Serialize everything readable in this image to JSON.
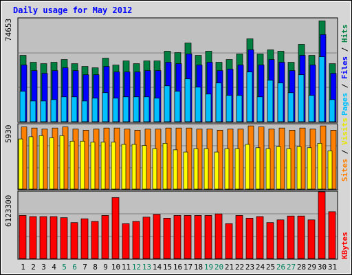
{
  "title": "Daily usage for May 2012",
  "colors": {
    "background": "#c0c0c0",
    "title": "#0000ff",
    "hits": "#008040",
    "files": "#0000ff",
    "pages": "#00c0ff",
    "visits": "#ffff00",
    "sites": "#ff8000",
    "kbytes": "#ff0000",
    "weekend_label": "#00805c",
    "weekday_label": "#000000"
  },
  "legends": {
    "top": [
      "Pages",
      "Files",
      "Hits"
    ],
    "top_separator": " / ",
    "middle": [
      "Sites",
      "Visits"
    ],
    "middle_separator": " / ",
    "bottom": [
      "KBytes"
    ]
  },
  "max_labels": {
    "top": "74653",
    "middle": "5930",
    "bottom": "6123300"
  },
  "chart_data": {
    "type": "bar",
    "title": "Daily usage for May 2012",
    "categories": [
      "1",
      "2",
      "3",
      "4",
      "5",
      "6",
      "7",
      "8",
      "9",
      "10",
      "11",
      "12",
      "13",
      "14",
      "15",
      "16",
      "17",
      "18",
      "19",
      "20",
      "21",
      "22",
      "23",
      "24",
      "25",
      "26",
      "27",
      "28",
      "29",
      "30",
      "31"
    ],
    "weekend_days": [
      "5",
      "6",
      "12",
      "13",
      "19",
      "20",
      "26",
      "27"
    ],
    "panels": [
      {
        "name": "top",
        "ymax": 74653,
        "series": [
          {
            "name": "Hits",
            "values": [
              48000,
              43000,
              42000,
              43000,
              45000,
              42000,
              40000,
              39000,
              46000,
              41000,
              44000,
              42000,
              44000,
              44000,
              51000,
              50000,
              57000,
              48000,
              51000,
              43000,
              45000,
              49000,
              60000,
              49000,
              52000,
              51000,
              43000,
              56000,
              48000,
              73000,
              42000
            ]
          },
          {
            "name": "Files",
            "values": [
              41000,
              37000,
              35000,
              37000,
              39000,
              37000,
              34000,
              34000,
              40000,
              36000,
              36000,
              36000,
              37000,
              37000,
              43000,
              42000,
              49000,
              41000,
              43000,
              37000,
              38000,
              41000,
              52000,
              41000,
              45000,
              43000,
              37000,
              48000,
              41000,
              63000,
              35000
            ]
          },
          {
            "name": "Pages",
            "values": [
              22000,
              15000,
              15000,
              16000,
              18000,
              18000,
              15000,
              17000,
              21000,
              17000,
              18000,
              18000,
              18000,
              17000,
              26000,
              22000,
              31000,
              25000,
              20000,
              28000,
              19000,
              19000,
              36000,
              18000,
              30000,
              28000,
              21000,
              34000,
              19000,
              47000,
              16000
            ]
          }
        ]
      },
      {
        "name": "middle",
        "ymax": 5930,
        "series": [
          {
            "name": "Sites",
            "values": [
              5700,
              5600,
              5500,
              5600,
              5700,
              5500,
              5400,
              5500,
              5600,
              5600,
              5500,
              5400,
              5500,
              5500,
              5600,
              5600,
              5600,
              5500,
              5500,
              5400,
              5500,
              5500,
              5800,
              5700,
              5500,
              5600,
              5400,
              5600,
              5500,
              5800,
              5400
            ]
          },
          {
            "name": "Visits",
            "values": [
              4600,
              4800,
              4900,
              4700,
              4900,
              4400,
              4400,
              4300,
              4300,
              4300,
              4100,
              4100,
              4000,
              3700,
              4200,
              3600,
              3400,
              3700,
              3700,
              3400,
              3700,
              3700,
              4100,
              3800,
              3700,
              3900,
              3700,
              3900,
              3800,
              4200,
              3500
            ]
          }
        ]
      },
      {
        "name": "bottom",
        "ymax": 6123300,
        "series": [
          {
            "name": "KBytes",
            "values": [
              3950000,
              3850000,
              3850000,
              3850000,
              3750000,
              3300000,
              3650000,
              3400000,
              3950000,
              5600000,
              3200000,
              3400000,
              3800000,
              4050000,
              3700000,
              3950000,
              3950000,
              3950000,
              3950000,
              4100000,
              3200000,
              3950000,
              3700000,
              3850000,
              3300000,
              3550000,
              3900000,
              3900000,
              3550000,
              6123300,
              4300000
            ]
          }
        ]
      }
    ]
  }
}
